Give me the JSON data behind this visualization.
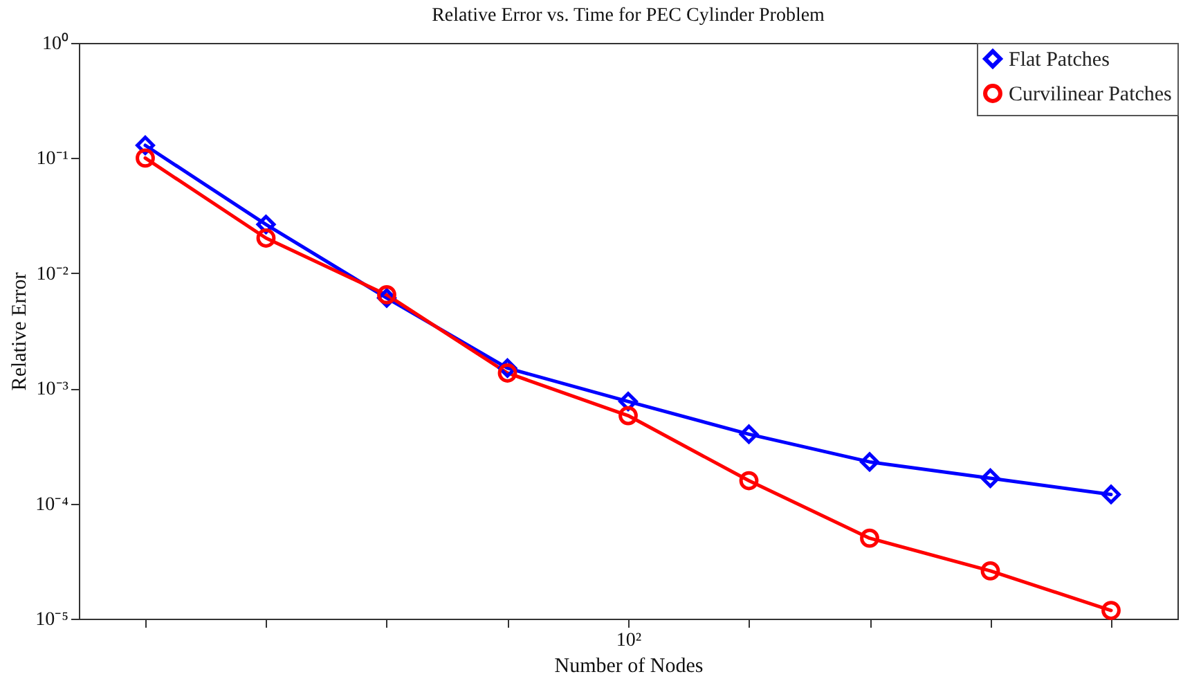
{
  "chart_data": {
    "type": "line",
    "title": "Relative Error vs. Time for PEC Cylinder Problem",
    "xlabel": "Number of Nodes",
    "ylabel": "Relative Error",
    "categories": [
      null,
      null,
      null,
      null,
      "10²",
      null,
      null,
      null,
      null
    ],
    "series": [
      {
        "name": "Flat Patches",
        "color": "#0000ff",
        "marker": "diamond",
        "values": [
          0.129,
          0.0265,
          0.0061,
          0.0015,
          0.00077,
          0.0004,
          0.00023,
          0.000166,
          0.00012
        ]
      },
      {
        "name": "Curvilinear Patches",
        "color": "#ff0000",
        "marker": "circle",
        "values": [
          0.1,
          0.0202,
          0.0065,
          0.00136,
          0.00058,
          0.000158,
          5e-05,
          2.6e-05,
          1.18e-05
        ]
      }
    ],
    "log": "y",
    "ylim": [
      1e-05,
      1
    ],
    "yticks": [
      {
        "value": 1e-05,
        "label": "10⁻⁵"
      },
      {
        "value": 0.0001,
        "label": "10⁻⁴"
      },
      {
        "value": 0.001,
        "label": "10⁻³"
      },
      {
        "value": 0.01,
        "label": "10⁻²"
      },
      {
        "value": 0.1,
        "label": "10⁻¹"
      },
      {
        "value": 1,
        "label": "10⁰"
      }
    ],
    "grid": false,
    "legend": "top right",
    "line_style": "solid"
  }
}
